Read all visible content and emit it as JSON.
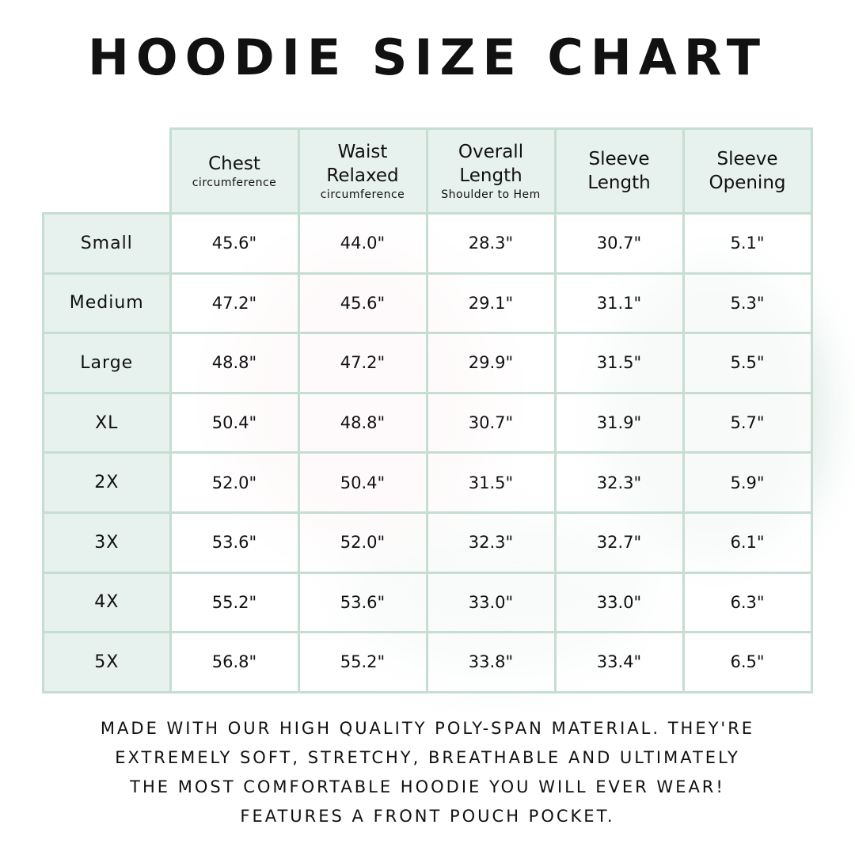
{
  "title": "HOODIE SIZE CHART",
  "columns": [
    {
      "label": "Chest",
      "sub": "circumference"
    },
    {
      "label": "Waist Relaxed",
      "sub": "circumference"
    },
    {
      "label": "Overall Length",
      "sub": "Shoulder to Hem"
    },
    {
      "label": "Sleeve Length",
      "sub": ""
    },
    {
      "label": "Sleeve Opening",
      "sub": ""
    }
  ],
  "rows": [
    {
      "size": "Small",
      "values": [
        "45.6\"",
        "44.0\"",
        "28.3\"",
        "30.7\"",
        "5.1\""
      ]
    },
    {
      "size": "Medium",
      "values": [
        "47.2\"",
        "45.6\"",
        "29.1\"",
        "31.1\"",
        "5.3\""
      ]
    },
    {
      "size": "Large",
      "values": [
        "48.8\"",
        "47.2\"",
        "29.9\"",
        "31.5\"",
        "5.5\""
      ]
    },
    {
      "size": "XL",
      "values": [
        "50.4\"",
        "48.8\"",
        "30.7\"",
        "31.9\"",
        "5.7\""
      ]
    },
    {
      "size": "2X",
      "values": [
        "52.0\"",
        "50.4\"",
        "31.5\"",
        "32.3\"",
        "5.9\""
      ]
    },
    {
      "size": "3X",
      "values": [
        "53.6\"",
        "52.0\"",
        "32.3\"",
        "32.7\"",
        "6.1\""
      ]
    },
    {
      "size": "4X",
      "values": [
        "55.2\"",
        "53.6\"",
        "33.0\"",
        "33.0\"",
        "6.3\""
      ]
    },
    {
      "size": "5X",
      "values": [
        "56.8\"",
        "55.2\"",
        "33.8\"",
        "33.4\"",
        "6.5\""
      ]
    }
  ],
  "footer": [
    "Made with our high quality poly-span material. They're",
    "extremely soft, stretchy, breathable and ultimately",
    "the most comfortable hoodie you will ever wear!",
    "Features a front pouch pocket."
  ],
  "colors": {
    "header_bg": "#e7f1ed",
    "border": "#c6ddd2"
  }
}
